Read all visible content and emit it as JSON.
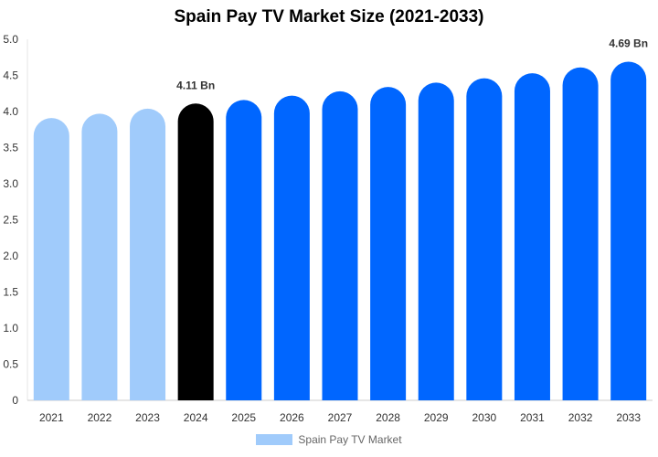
{
  "chart_data": {
    "type": "bar",
    "title": "Spain Pay TV Market Size (2021-2033)",
    "xlabel": "",
    "ylabel": "",
    "ylim": [
      0,
      5.0
    ],
    "yticks": [
      "0",
      "0.5",
      "1.0",
      "1.5",
      "2.0",
      "2.5",
      "3.0",
      "3.5",
      "4.0",
      "4.5",
      "5.0"
    ],
    "categories": [
      "2021",
      "2022",
      "2023",
      "2024",
      "2025",
      "2026",
      "2027",
      "2028",
      "2029",
      "2030",
      "2031",
      "2032",
      "2033"
    ],
    "series": [
      {
        "name": "Spain Pay TV Market",
        "values": [
          3.91,
          3.97,
          4.04,
          4.11,
          4.16,
          4.22,
          4.28,
          4.34,
          4.4,
          4.46,
          4.53,
          4.61,
          4.69
        ]
      }
    ],
    "bar_colors": [
      "#a0cbfb",
      "#a0cbfb",
      "#a0cbfb",
      "#000000",
      "#0066ff",
      "#0066ff",
      "#0066ff",
      "#0066ff",
      "#0066ff",
      "#0066ff",
      "#0066ff",
      "#0066ff",
      "#0066ff"
    ],
    "data_labels": [
      {
        "category": "2024",
        "text": "4.11 Bn"
      },
      {
        "category": "2033",
        "text": "4.69 Bn"
      }
    ],
    "legend_color": "#a0cbfb",
    "grid": false,
    "legend_position": "bottom-center"
  }
}
